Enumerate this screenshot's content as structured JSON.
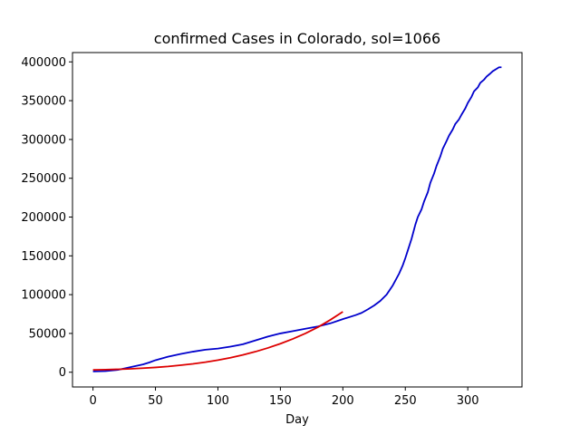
{
  "chart_data": {
    "type": "line",
    "title": "confirmed Cases in Colorado, sol=1066",
    "xlabel": "Day",
    "ylabel": "",
    "xlim": [
      -16.4,
      343.4
    ],
    "ylim": [
      -19000,
      412000
    ],
    "xticks": [
      0,
      50,
      100,
      150,
      200,
      250,
      300
    ],
    "yticks": [
      0,
      50000,
      100000,
      150000,
      200000,
      250000,
      300000,
      350000,
      400000
    ],
    "grid": false,
    "series": [
      {
        "color": "#0000cc",
        "x": [
          0,
          10,
          20,
          30,
          40,
          45,
          50,
          60,
          70,
          80,
          90,
          100,
          110,
          120,
          130,
          140,
          150,
          160,
          170,
          180,
          190,
          200,
          210,
          215,
          220,
          225,
          230,
          235,
          240,
          245,
          248,
          250,
          253,
          255,
          258,
          260,
          263,
          265,
          268,
          270,
          273,
          275,
          278,
          280,
          283,
          285,
          288,
          290,
          293,
          295,
          298,
          300,
          303,
          305,
          308,
          310,
          313,
          315,
          318,
          320,
          323,
          325,
          327
        ],
        "y": [
          1000,
          1500,
          3000,
          6500,
          10000,
          12500,
          15500,
          20000,
          23500,
          26500,
          29000,
          30500,
          33000,
          36000,
          41000,
          46000,
          50000,
          53000,
          56000,
          59000,
          63000,
          68500,
          73500,
          76500,
          81000,
          86000,
          92000,
          100000,
          112000,
          127000,
          138000,
          147000,
          162000,
          172000,
          190000,
          200000,
          210000,
          220000,
          232000,
          244000,
          256000,
          266000,
          278000,
          288000,
          298000,
          305000,
          313000,
          320000,
          326000,
          332000,
          340000,
          347000,
          355000,
          362000,
          367000,
          373000,
          377000,
          381000,
          385000,
          388000,
          391000,
          393000,
          393000
        ]
      },
      {
        "color": "#dd0000",
        "x": [
          0,
          10,
          20,
          30,
          40,
          50,
          60,
          70,
          80,
          90,
          100,
          110,
          120,
          130,
          140,
          150,
          160,
          170,
          180,
          190,
          200
        ],
        "y": [
          3000,
          3300,
          3800,
          4400,
          5200,
          6200,
          7400,
          9000,
          10800,
          13000,
          15600,
          18700,
          22300,
          26500,
          31300,
          36800,
          43000,
          50000,
          58000,
          67500,
          78000
        ]
      }
    ]
  }
}
